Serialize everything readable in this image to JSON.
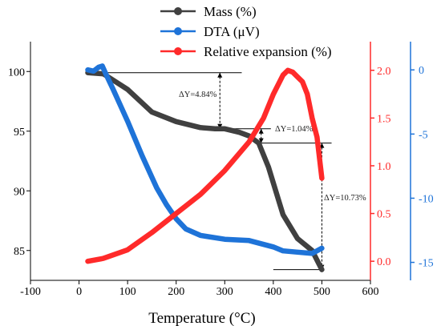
{
  "chart_data": {
    "type": "line",
    "title": "",
    "xlabel": "Temperature (°C)",
    "xlim": [
      -100,
      600
    ],
    "x_ticks": [
      -100,
      0,
      100,
      200,
      300,
      400,
      500,
      600
    ],
    "y_axes": [
      {
        "id": "mass",
        "side": "left",
        "color": "#000000",
        "ylim": [
          82.5,
          102.5
        ],
        "ticks": [
          85,
          90,
          95,
          100
        ]
      },
      {
        "id": "expansion",
        "side": "right-inner",
        "color": "#ff2a2a",
        "ylim": [
          -0.2,
          2.3
        ],
        "ticks": [
          0.0,
          0.5,
          1.0,
          1.5,
          2.0
        ]
      },
      {
        "id": "dta",
        "side": "right-outer",
        "color": "#1e73d8",
        "ylim": [
          -16.4,
          2.2
        ],
        "ticks": [
          -15,
          -10,
          -5,
          0
        ]
      }
    ],
    "legend_position": "top-center",
    "series": [
      {
        "name": "Mass (%)",
        "axis": "mass",
        "color": "#404040",
        "x": [
          18,
          50,
          100,
          150,
          200,
          250,
          280,
          300,
          330,
          350,
          370,
          390,
          420,
          450,
          480,
          500
        ],
        "y": [
          99.9,
          99.8,
          98.5,
          96.6,
          95.8,
          95.3,
          95.2,
          95.2,
          94.9,
          94.6,
          94.0,
          92.0,
          88.0,
          86.0,
          85.0,
          83.4
        ]
      },
      {
        "name": "DTA (μV)",
        "axis": "dta",
        "color": "#1e73d8",
        "x": [
          18,
          30,
          40,
          48,
          55,
          70,
          100,
          130,
          160,
          180,
          200,
          220,
          250,
          300,
          350,
          400,
          420,
          450,
          480,
          500
        ],
        "y": [
          0.0,
          -0.1,
          0.2,
          0.3,
          -0.3,
          -1.5,
          -4.0,
          -6.7,
          -9.2,
          -10.5,
          -11.6,
          -12.4,
          -12.9,
          -13.2,
          -13.3,
          -13.8,
          -14.1,
          -14.2,
          -14.3,
          -13.9
        ]
      },
      {
        "name": "Relative expansion (%)",
        "axis": "expansion",
        "color": "#ff2a2a",
        "x": [
          18,
          50,
          100,
          150,
          200,
          250,
          300,
          350,
          380,
          400,
          420,
          430,
          440,
          450,
          460,
          470,
          480,
          490,
          500
        ],
        "y": [
          0.0,
          0.03,
          0.12,
          0.3,
          0.5,
          0.7,
          0.95,
          1.25,
          1.5,
          1.75,
          1.95,
          2.0,
          1.98,
          1.93,
          1.88,
          1.75,
          1.5,
          1.3,
          0.87
        ]
      }
    ],
    "annotations": [
      {
        "label": "ΔY=4.84%"
      },
      {
        "label": "ΔY=1.04%"
      },
      {
        "label": "ΔY=10.73%"
      }
    ]
  }
}
